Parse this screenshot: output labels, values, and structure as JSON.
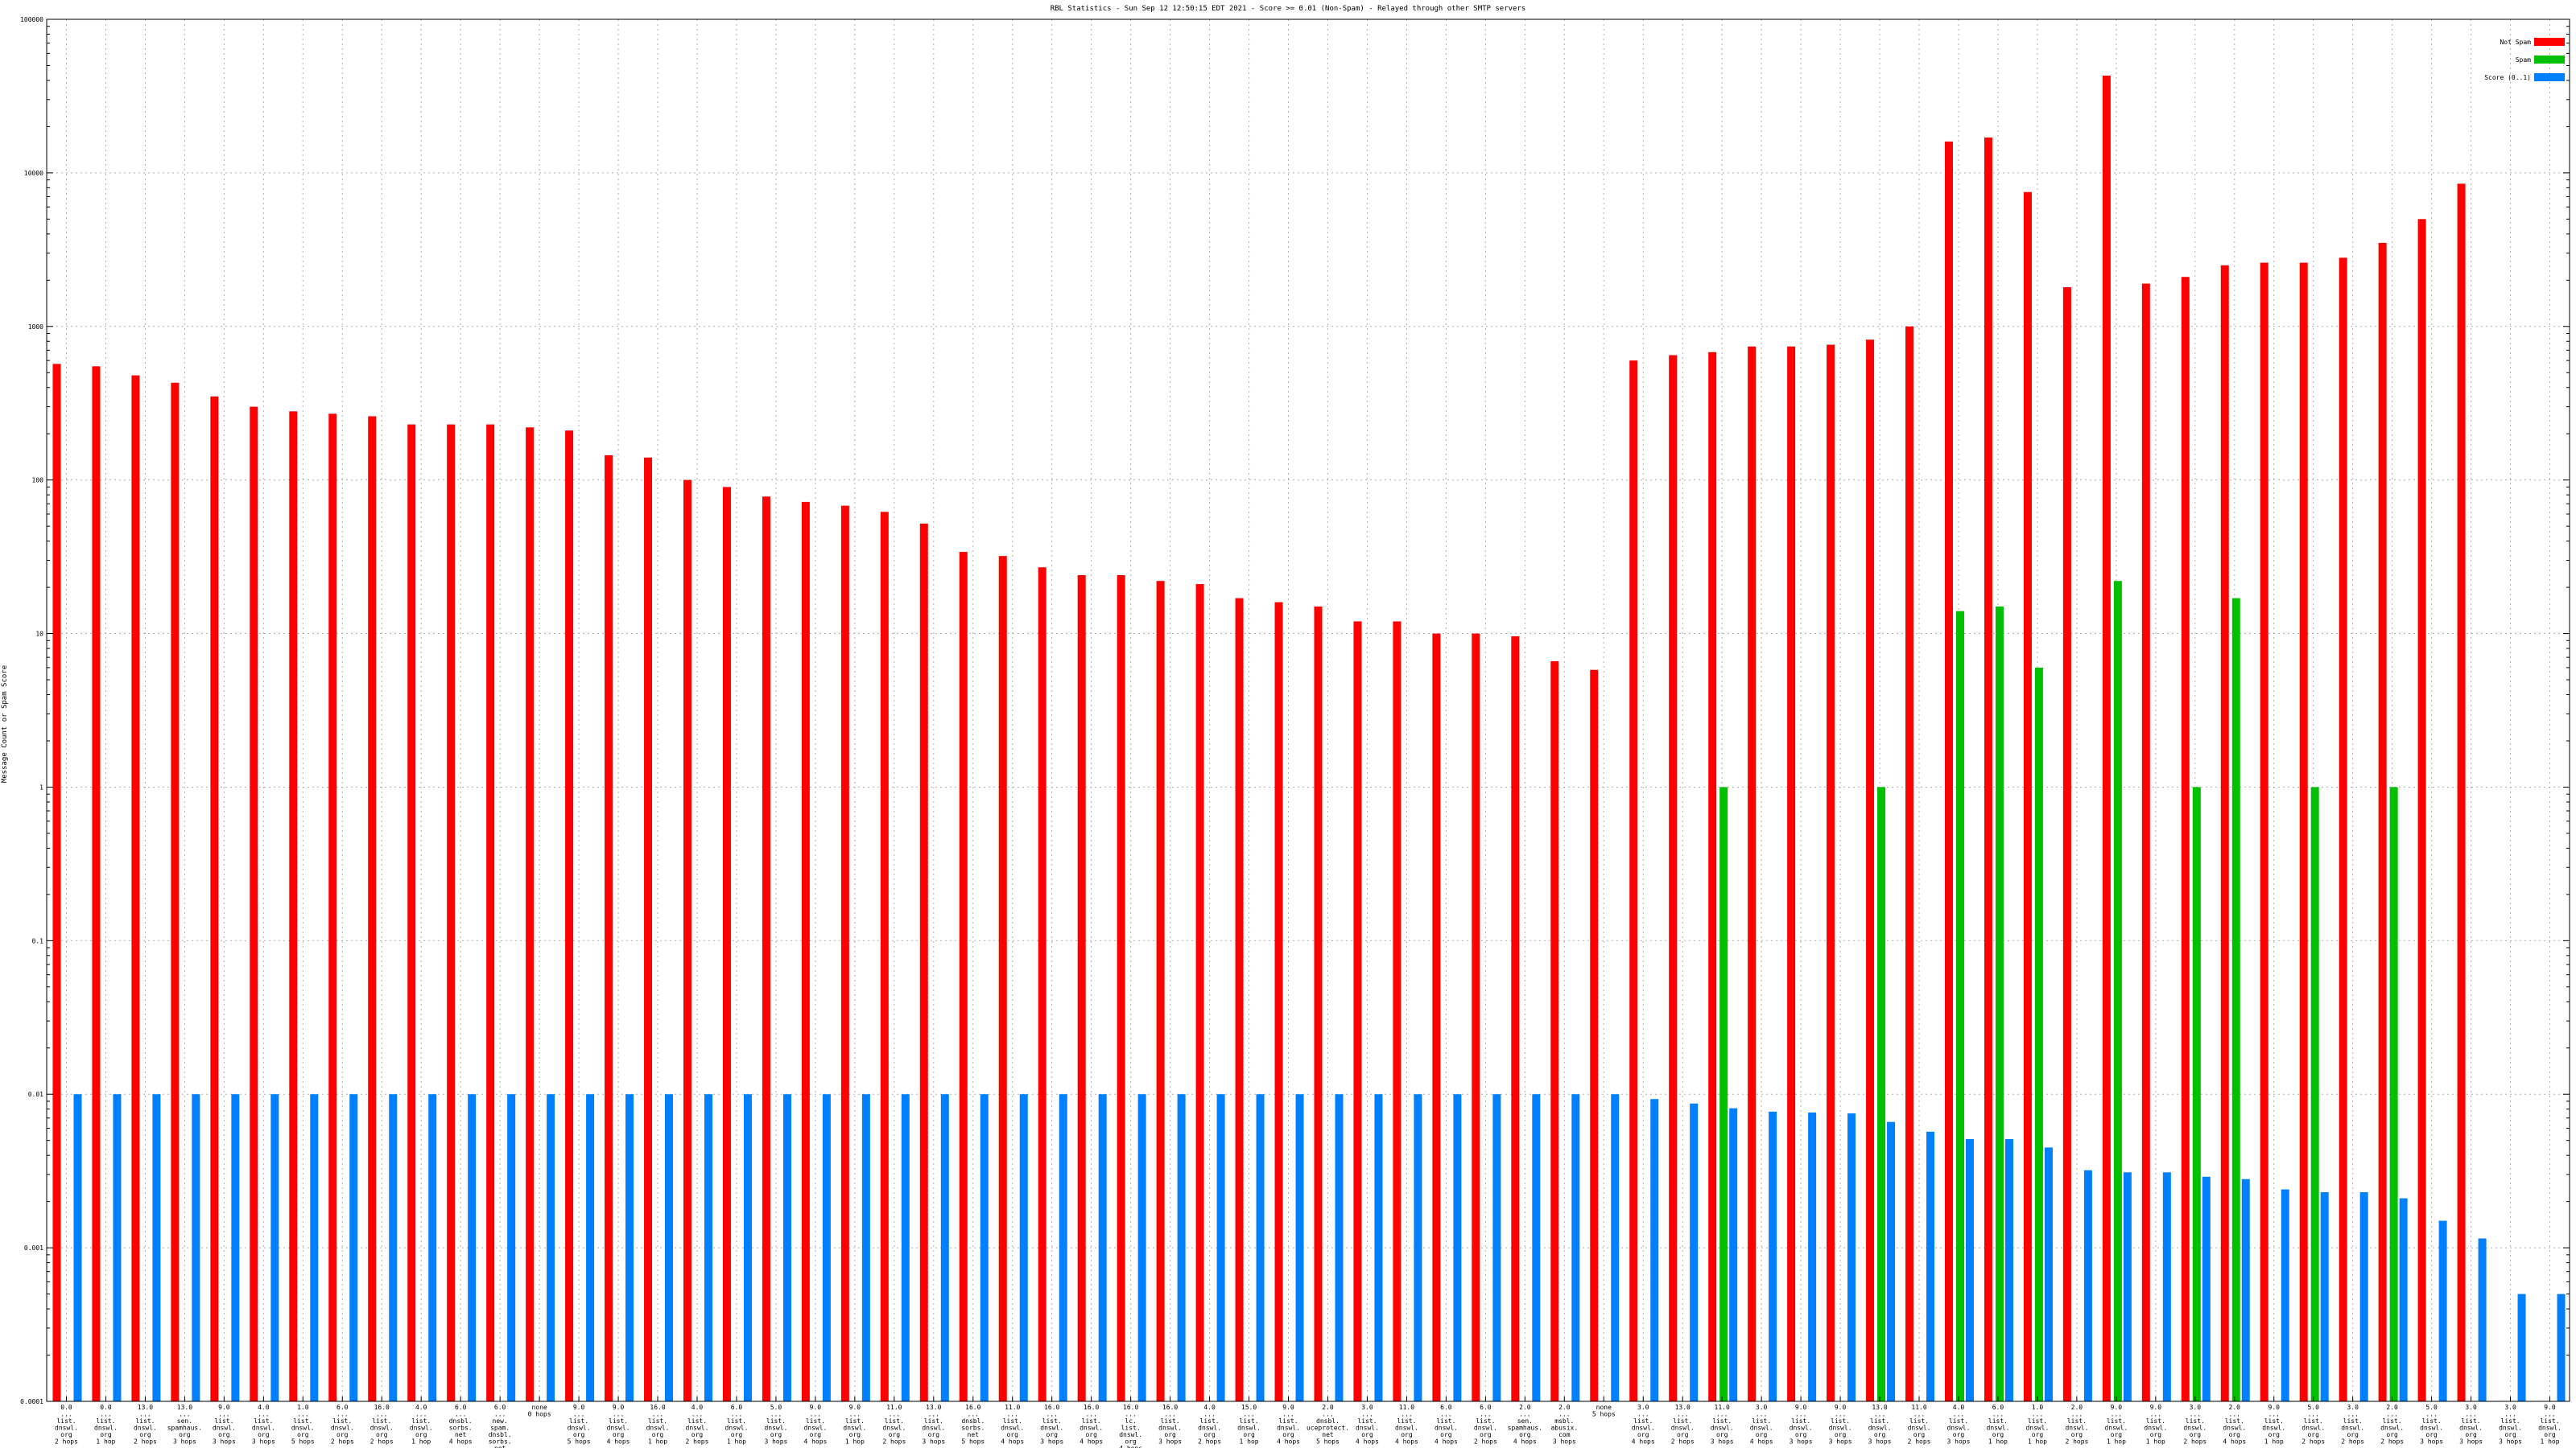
{
  "chart_data": {
    "type": "bar",
    "title": "RBL Statistics - Sun Sep 12 12:50:15 EDT 2021 - Score >= 0.01 (Non-Spam) - Relayed through other SMTP servers",
    "ylabel": "Message Count or Spam Score",
    "xlabel": "",
    "yscale": "log",
    "ylim": [
      0.0001,
      100000
    ],
    "ytick_labels": [
      "0.0001",
      "0.001",
      "0.01",
      "0.1",
      "1",
      "10",
      "100",
      "1000",
      "10000",
      "100000"
    ],
    "grid": true,
    "legend_position": "top-right",
    "categories": [
      "0.0\n...\nlist.\ndnswl.\norg\n2 hops",
      "0.0\n...\nlist.\ndnswl.\norg\n1 hop",
      "13.0\n...\nlist.\ndnswl.\norg\n2 hops",
      "13.0\n...\nsen.\nspamhaus.\norg\n3 hops",
      "9.0\n...\nlist.\ndnswl.\norg\n3 hops",
      "4.0\n...\nlist.\ndnswl.\norg\n3 hops",
      "1.0\n...\nlist.\ndnswl.\norg\n5 hops",
      "6.0\n...\nlist.\ndnswl.\norg\n2 hops",
      "16.0\n...\nlist.\ndnswl.\norg\n2 hops",
      "4.0\n...\nlist.\ndnswl.\norg\n1 hop",
      "6.0\n...\ndnsbl.\nsorbs.\nnet\n4 hops",
      "6.0\n...\nnew.\nspam.\ndnsbl.\nsorbs.\nnet\n4 hops",
      "none\n0 hops",
      "9.0\n...\nlist.\ndnswl.\norg\n5 hops",
      "9.0\n...\nlist.\ndnswl.\norg\n4 hops",
      "16.0\n...\nlist.\ndnswl.\norg\n1 hop",
      "4.0\n...\nlist.\ndnswl.\norg\n2 hops",
      "6.0\n...\nlist.\ndnswl.\norg\n1 hop",
      "5.0\n...\nlist.\ndnswl.\norg\n3 hops",
      "9.0\n...\nlist.\ndnswl.\norg\n4 hops",
      "9.0\n...\nlist.\ndnswl.\norg\n1 hop",
      "11.0\n...\nlist.\ndnswl.\norg\n2 hops",
      "13.0\n...\nlist.\ndnswl.\norg\n3 hops",
      "16.0\n...\ndnsbl.\nsorbs.\nnet\n5 hops",
      "11.0\n...\nlist.\ndnswl.\norg\n4 hops",
      "16.0\n...\nlist.\ndnswl.\norg\n3 hops",
      "16.0\n...\nlist.\ndnswl.\norg\n4 hops",
      "16.0\n...\nlc.\nlist.\ndnswl.\norg\n4 hops",
      "16.0\n...\nlist.\ndnswl.\norg\n3 hops",
      "4.0\n...\nlist.\ndnswl.\norg\n2 hops",
      "15.0\n...\nlist.\ndnswl.\norg\n1 hop",
      "9.0\n...\nlist.\ndnswl.\norg\n4 hops",
      "2.0\n...\ndnsbl.\nuceprotect.\nnet\n5 hops",
      "3.0\n...\nlist.\ndnswl.\norg\n4 hops",
      "11.0\n...\nlist.\ndnswl.\norg\n4 hops",
      "6.0\n...\nlist.\ndnswl.\norg\n4 hops",
      "6.0\n...\nlist.\ndnswl.\norg\n2 hops",
      "2.0\n...\nsen.\nspamhaus.\norg\n4 hops",
      "2.0\n...\nmsbl.\nabusix.\ncom\n3 hops",
      "none\n5 hops",
      "3.0\n...\nlist.\ndnswl.\norg\n4 hops",
      "13.0\n...\nlist.\ndnswl.\norg\n2 hops",
      "11.0\n...\nlist.\ndnswl.\norg\n3 hops",
      "3.0\n...\nlist.\ndnswl.\norg\n4 hops",
      "9.0\n...\nlist.\ndnswl.\norg\n3 hops",
      "9.0\n...\nlist.\ndnswl.\norg\n3 hops",
      "13.0\n...\nlist.\ndnswl.\norg\n3 hops",
      "11.0\n...\nlist.\ndnswl.\norg\n2 hops",
      "4.0\n...\nlist.\ndnswl.\norg\n3 hops",
      "6.0\n...\nlist.\ndnswl.\norg\n1 hop",
      "1.0\n...\nlist.\ndnswl.\norg\n1 hop",
      "2.0\n...\nlist.\ndnswl.\norg\n2 hops",
      "9.0\n...\nlist.\ndnswl.\norg\n1 hop",
      "9.0\n...\nlist.\ndnswl.\norg\n1 hop",
      "3.0\n...\nlist.\ndnswl.\norg\n2 hops",
      "2.0\n...\nlist.\ndnswl.\norg\n4 hops",
      "9.0\n...\nlist.\ndnswl.\norg\n1 hop",
      "5.0\n...\nlist.\ndnswl.\norg\n2 hops",
      "3.0\n...\nlist.\ndnswl.\norg\n2 hops",
      "2.0\n...\nlist.\ndnswl.\norg\n2 hops",
      "5.0\n...\nlist.\ndnswl.\norg\n3 hops",
      "3.0\n...\nlist.\ndnswl.\norg\n3 hops",
      "3.0\n...\nlist.\ndnswl.\norg\n3 hops",
      "9.0\n...\nlist.\ndnswl.\norg\n1 hop"
    ],
    "series": [
      {
        "name": "Not Spam",
        "color": "#ff0000",
        "values": [
          570,
          550,
          480,
          430,
          350,
          300,
          280,
          270,
          260,
          230,
          230,
          230,
          220,
          210,
          145,
          140,
          100,
          90,
          78,
          72,
          68,
          62,
          52,
          34,
          32,
          27,
          24,
          24,
          22,
          21,
          17,
          16,
          15,
          12,
          12,
          10,
          10,
          9.6,
          6.6,
          5.8,
          600,
          650,
          680,
          740,
          740,
          760,
          820,
          1000,
          16000,
          17000,
          7500,
          1800,
          43000,
          1900,
          2100,
          2500,
          2600,
          2600,
          2800,
          3500,
          5000,
          8500,
          0,
          0
        ]
      },
      {
        "name": "Spam",
        "color": "#00c000",
        "values": [
          0,
          0,
          0,
          0,
          0,
          0,
          0,
          0,
          0,
          0,
          0,
          0,
          0,
          0,
          0,
          0,
          0,
          0,
          0,
          0,
          0,
          0,
          0,
          0,
          0,
          0,
          0,
          0,
          0,
          0,
          0,
          0,
          0,
          0,
          0,
          0,
          0,
          0,
          0,
          0,
          0,
          0,
          1,
          0,
          0,
          0,
          1,
          0,
          14,
          15,
          6,
          0,
          22,
          0,
          1,
          17,
          0,
          1,
          0,
          1,
          0,
          0,
          0,
          0
        ]
      },
      {
        "name": "Score (0..1)",
        "color": "#0080ff",
        "values": [
          0.01,
          0.01,
          0.01,
          0.01,
          0.01,
          0.01,
          0.01,
          0.01,
          0.01,
          0.01,
          0.01,
          0.01,
          0.01,
          0.01,
          0.01,
          0.01,
          0.01,
          0.01,
          0.01,
          0.01,
          0.01,
          0.01,
          0.01,
          0.01,
          0.01,
          0.01,
          0.01,
          0.01,
          0.01,
          0.01,
          0.01,
          0.01,
          0.01,
          0.01,
          0.01,
          0.01,
          0.01,
          0.01,
          0.01,
          0.01,
          0.0093,
          0.0087,
          0.0081,
          0.0077,
          0.0076,
          0.0075,
          0.0066,
          0.0057,
          0.0051,
          0.0051,
          0.0045,
          0.0032,
          0.0031,
          0.0031,
          0.0029,
          0.0028,
          0.0024,
          0.0023,
          0.0023,
          0.0021,
          0.0015,
          0.00115,
          0.0005,
          0.0005
        ]
      }
    ]
  }
}
